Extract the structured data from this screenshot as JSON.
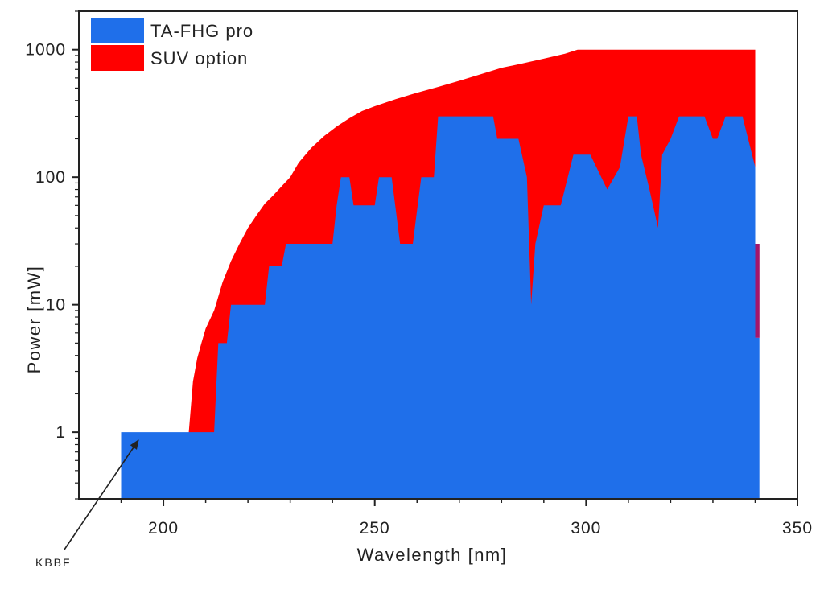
{
  "chart_data": {
    "type": "area",
    "title": "",
    "xlabel": "Wavelength [nm]",
    "ylabel": "Power [mW]",
    "xlim": [
      180,
      350
    ],
    "ylim": [
      0.3,
      2000
    ],
    "yscale": "log",
    "grid": false,
    "legend_position": "top-left",
    "x_ticks": [
      200,
      250,
      300,
      350
    ],
    "y_ticks": [
      {
        "value": 1,
        "label": "1"
      },
      {
        "value": 10,
        "label": "10"
      },
      {
        "value": 100,
        "label": "100"
      },
      {
        "value": 1000,
        "label": "1000"
      }
    ],
    "series": [
      {
        "name": "SUV option",
        "color": "#ff0000",
        "points": [
          [
            206,
            0.3
          ],
          [
            206,
            1.0
          ],
          [
            207,
            2.5
          ],
          [
            208,
            3.8
          ],
          [
            209,
            5
          ],
          [
            210,
            6.5
          ],
          [
            212,
            9
          ],
          [
            214,
            15
          ],
          [
            216,
            22
          ],
          [
            218,
            30
          ],
          [
            220,
            40
          ],
          [
            222,
            50
          ],
          [
            224,
            62
          ],
          [
            226,
            72
          ],
          [
            228,
            85
          ],
          [
            230,
            100
          ],
          [
            232,
            130
          ],
          [
            235,
            170
          ],
          [
            238,
            210
          ],
          [
            241,
            250
          ],
          [
            244,
            290
          ],
          [
            247,
            330
          ],
          [
            250,
            360
          ],
          [
            255,
            410
          ],
          [
            260,
            460
          ],
          [
            265,
            510
          ],
          [
            270,
            570
          ],
          [
            275,
            640
          ],
          [
            280,
            720
          ],
          [
            285,
            780
          ],
          [
            290,
            850
          ],
          [
            295,
            930
          ],
          [
            298,
            1000
          ],
          [
            340,
            1000
          ],
          [
            340,
            0.3
          ]
        ]
      },
      {
        "name": "TA-FHG pro",
        "color": "#1f6fea",
        "points": [
          [
            190,
            0.3
          ],
          [
            190,
            1
          ],
          [
            212,
            1
          ],
          [
            213,
            5
          ],
          [
            215,
            5
          ],
          [
            216,
            10
          ],
          [
            224,
            10
          ],
          [
            225,
            20
          ],
          [
            228,
            20
          ],
          [
            229,
            30
          ],
          [
            240,
            30
          ],
          [
            241,
            60
          ],
          [
            242,
            100
          ],
          [
            244,
            100
          ],
          [
            245,
            60
          ],
          [
            250,
            60
          ],
          [
            251,
            100
          ],
          [
            254,
            100
          ],
          [
            256,
            30
          ],
          [
            259,
            30
          ],
          [
            261,
            100
          ],
          [
            264,
            100
          ],
          [
            265,
            300
          ],
          [
            278,
            300
          ],
          [
            279,
            200
          ],
          [
            284,
            200
          ],
          [
            286,
            100
          ],
          [
            287,
            10
          ],
          [
            288,
            30
          ],
          [
            290,
            60
          ],
          [
            294,
            60
          ],
          [
            297,
            150
          ],
          [
            301,
            150
          ],
          [
            305,
            80
          ],
          [
            308,
            120
          ],
          [
            310,
            300
          ],
          [
            312,
            300
          ],
          [
            313,
            150
          ],
          [
            315,
            80
          ],
          [
            317,
            40
          ],
          [
            318,
            150
          ],
          [
            320,
            200
          ],
          [
            322,
            300
          ],
          [
            328,
            300
          ],
          [
            330,
            200
          ],
          [
            331,
            200
          ],
          [
            333,
            300
          ],
          [
            337,
            300
          ],
          [
            338,
            220
          ],
          [
            340,
            120
          ],
          [
            340,
            5.5
          ],
          [
            341,
            5.5
          ],
          [
            341,
            0.3
          ]
        ]
      }
    ],
    "legend": [
      {
        "label": "TA-FHG pro",
        "color": "#1f6fea"
      },
      {
        "label": "SUV option",
        "color": "#ff0000"
      }
    ],
    "annotations": [
      {
        "text": "KBBF",
        "arrow_to": [
          199,
          1
        ]
      }
    ],
    "overlap_color": "#a4166a"
  }
}
